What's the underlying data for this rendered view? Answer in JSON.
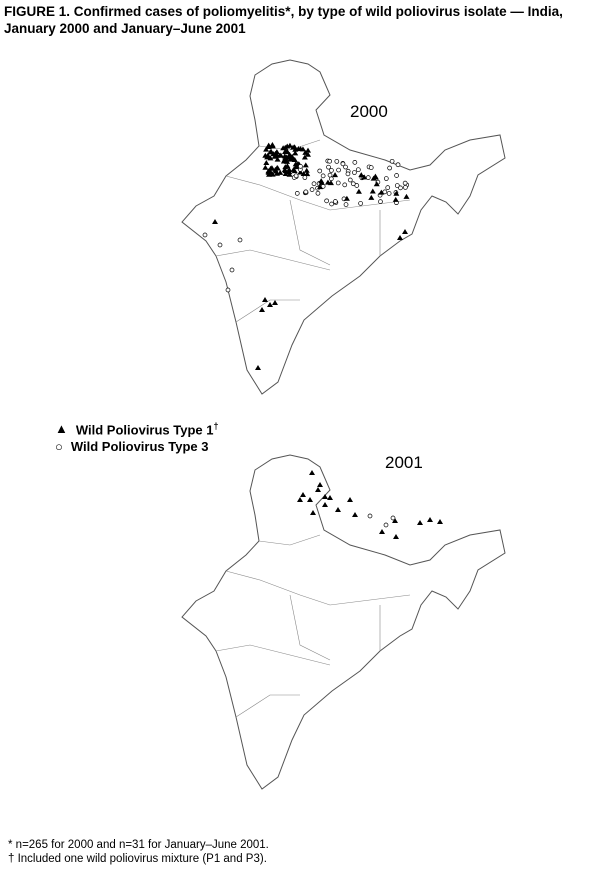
{
  "figure": {
    "title_line1": "FIGURE 1. Confirmed cases of poliomyelitis*, by type of wild poliovirus isolate — India,",
    "title_line2": "January 2000 and January–June 2001"
  },
  "maps": [
    {
      "year_label": "2000"
    },
    {
      "year_label": "2001"
    }
  ],
  "legend": [
    {
      "symbol": "filled-triangle",
      "label": "Wild Poliovirus Type 1",
      "superscript": "†"
    },
    {
      "symbol": "open-circle",
      "label": "Wild Poliovirus Type 3",
      "superscript": ""
    }
  ],
  "footnotes": [
    "* n=265 for 2000 and n=31 for January–June 2001.",
    "† Included one wild poliovirus mixture (P1 and P3)."
  ],
  "colors": {
    "outline": "#555555",
    "marker": "#000000"
  }
}
